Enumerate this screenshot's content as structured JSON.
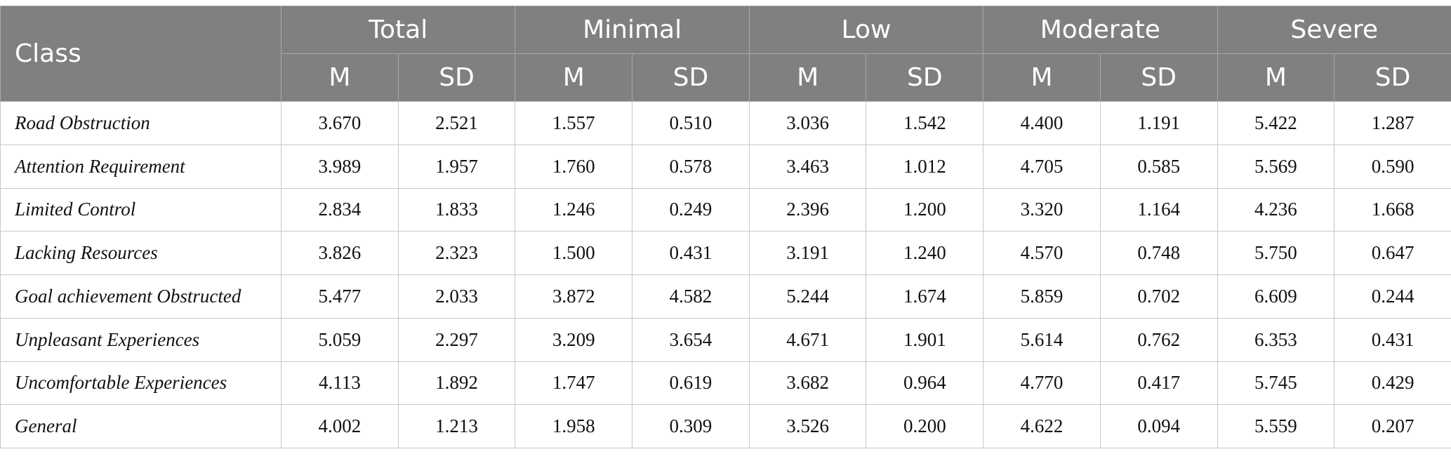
{
  "table": {
    "class_header": "Class",
    "groups": [
      "Total",
      "Minimal",
      "Low",
      "Moderate",
      "Severe"
    ],
    "sub_m": "M",
    "sub_sd": "SD",
    "rows": [
      {
        "label": "Road Obstruction",
        "values": [
          "3.670",
          "2.521",
          "1.557",
          "0.510",
          "3.036",
          "1.542",
          "4.400",
          "1.191",
          "5.422",
          "1.287"
        ]
      },
      {
        "label": "Attention Requirement",
        "values": [
          "3.989",
          "1.957",
          "1.760",
          "0.578",
          "3.463",
          "1.012",
          "4.705",
          "0.585",
          "5.569",
          "0.590"
        ]
      },
      {
        "label": "Limited Control",
        "values": [
          "2.834",
          "1.833",
          "1.246",
          "0.249",
          "2.396",
          "1.200",
          "3.320",
          "1.164",
          "4.236",
          "1.668"
        ]
      },
      {
        "label": "Lacking Resources",
        "values": [
          "3.826",
          "2.323",
          "1.500",
          "0.431",
          "3.191",
          "1.240",
          "4.570",
          "0.748",
          "5.750",
          "0.647"
        ]
      },
      {
        "label": "Goal achievement Obstructed",
        "values": [
          "5.477",
          "2.033",
          "3.872",
          "4.582",
          "5.244",
          "1.674",
          "5.859",
          "0.702",
          "6.609",
          "0.244"
        ]
      },
      {
        "label": "Unpleasant Experiences",
        "values": [
          "5.059",
          "2.297",
          "3.209",
          "3.654",
          "4.671",
          "1.901",
          "5.614",
          "0.762",
          "6.353",
          "0.431"
        ]
      },
      {
        "label": "Uncomfortable Experiences",
        "values": [
          "4.113",
          "1.892",
          "1.747",
          "0.619",
          "3.682",
          "0.964",
          "4.770",
          "0.417",
          "5.745",
          "0.429"
        ]
      },
      {
        "label": "General",
        "values": [
          "4.002",
          "1.213",
          "1.958",
          "0.309",
          "3.526",
          "0.200",
          "4.622",
          "0.094",
          "5.559",
          "0.207"
        ]
      }
    ]
  }
}
